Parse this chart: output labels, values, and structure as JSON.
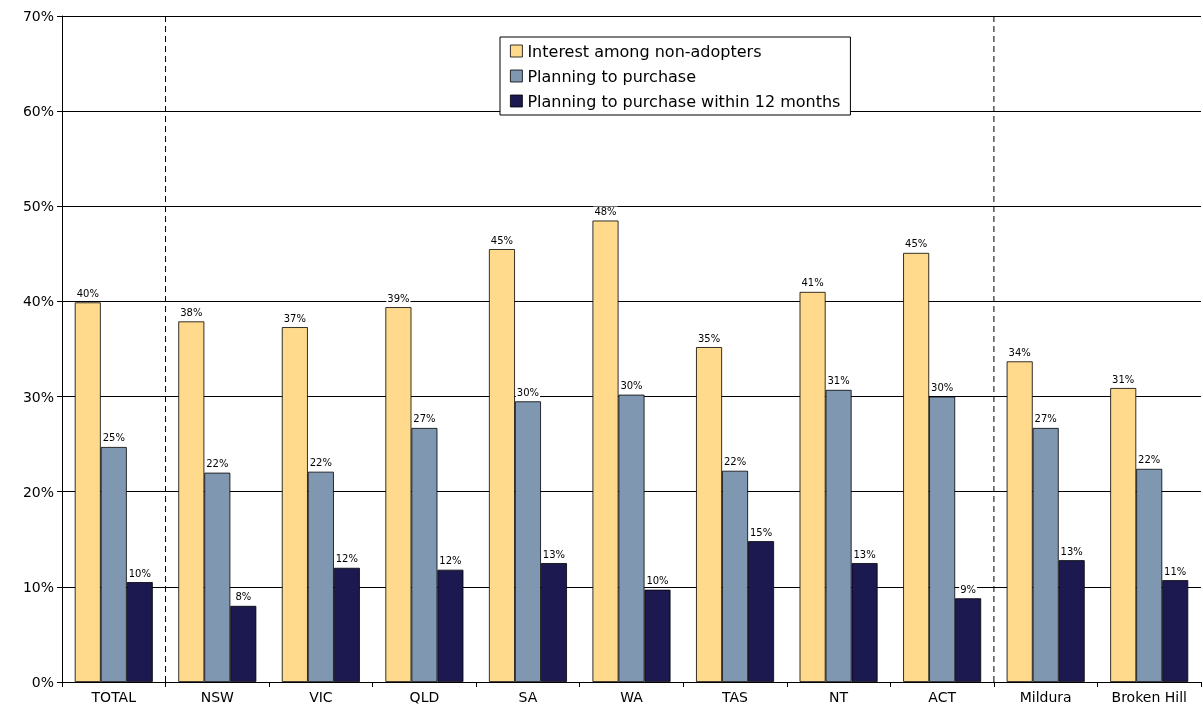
{
  "chart_data": {
    "type": "bar",
    "categories": [
      "TOTAL",
      "NSW",
      "VIC",
      "QLD",
      "SA",
      "WA",
      "TAS",
      "NT",
      "ACT",
      "Mildura",
      "Broken Hill"
    ],
    "series": [
      {
        "name": "Interest among non-adopters",
        "color": "#ffd98c",
        "values": [
          39.9,
          37.9,
          37.3,
          39.4,
          45.5,
          48.5,
          35.2,
          41.0,
          45.1,
          33.7,
          30.9
        ],
        "value_labels": [
          "40%",
          "38%",
          "37%",
          "39%",
          "45%",
          "48%",
          "35%",
          "41%",
          "45%",
          "34%",
          "31%"
        ]
      },
      {
        "name": "Planning to purchase",
        "color": "#8097b2",
        "values": [
          24.7,
          22.0,
          22.1,
          26.7,
          29.5,
          30.2,
          22.2,
          30.7,
          30.0,
          26.7,
          22.4
        ],
        "value_labels": [
          "25%",
          "22%",
          "22%",
          "27%",
          "30%",
          "30%",
          "22%",
          "31%",
          "30%",
          "27%",
          "22%"
        ]
      },
      {
        "name": "Planning to purchase within 12 months",
        "color": "#1c1850",
        "values": [
          10.5,
          8.0,
          12.0,
          11.8,
          12.5,
          9.7,
          14.8,
          12.5,
          8.8,
          12.8,
          10.7
        ],
        "value_labels": [
          "10%",
          "8%",
          "12%",
          "12%",
          "13%",
          "10%",
          "15%",
          "13%",
          "9%",
          "13%",
          "11%"
        ]
      }
    ],
    "ylim": [
      0,
      70
    ],
    "yticks": [
      {
        "value": 0,
        "label": "0%"
      },
      {
        "value": 10,
        "label": "10%"
      },
      {
        "value": 20,
        "label": "20%"
      },
      {
        "value": 30,
        "label": "30%"
      },
      {
        "value": 40,
        "label": "40%"
      },
      {
        "value": 50,
        "label": "50%"
      },
      {
        "value": 60,
        "label": "60%"
      },
      {
        "value": 70,
        "label": "70%"
      }
    ],
    "grid": "y",
    "legend": "top right"
  }
}
